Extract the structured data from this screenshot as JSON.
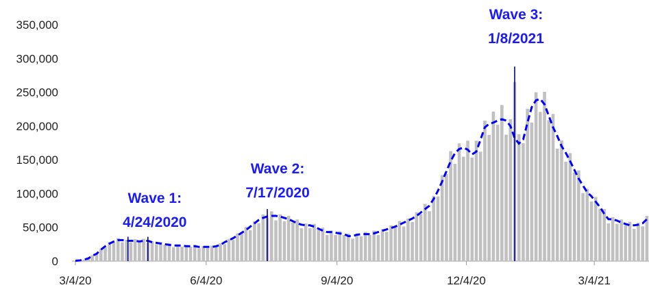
{
  "chart_data": {
    "type": "bar-line",
    "x": [
      0,
      3,
      6,
      9,
      12,
      15,
      18,
      21,
      24,
      27,
      30,
      33,
      36,
      39,
      42,
      45,
      48,
      51,
      54,
      57,
      60,
      63,
      66,
      69,
      72,
      75,
      78,
      81,
      84,
      87,
      90,
      93,
      96,
      99,
      102,
      105,
      108,
      111,
      114,
      117,
      120,
      123,
      126,
      129,
      132,
      135,
      138,
      141,
      144,
      147,
      150,
      153,
      156,
      159,
      162,
      165,
      168,
      171,
      174,
      177,
      180,
      183,
      186,
      189,
      192,
      195,
      198,
      201,
      204,
      207,
      210,
      213,
      216,
      219,
      222,
      225,
      228,
      231,
      234,
      237,
      240,
      243,
      246,
      249,
      252,
      255,
      258,
      261,
      264,
      267,
      270,
      273,
      276,
      279,
      282,
      285,
      288,
      291,
      294,
      297,
      300,
      303,
      306,
      309,
      312,
      315,
      318,
      321,
      324,
      327,
      330,
      333,
      336,
      339,
      342,
      345,
      348,
      351,
      354,
      357,
      360,
      363,
      366,
      369,
      372,
      375,
      378,
      381,
      384,
      387,
      390,
      393,
      396,
      399,
      402
    ],
    "series": [
      {
        "kind": "bar",
        "color": "#c0c0c0",
        "values": [
          500,
          900,
          2200,
          3900,
          8800,
          9900,
          17900,
          20200,
          28100,
          28100,
          34100,
          27900,
          31500,
          27600,
          32400,
          28100,
          33000,
          27000,
          29400,
          24800,
          28100,
          24300,
          26400,
          20700,
          24200,
          21200,
          23800,
          21300,
          24200,
          18900,
          22100,
          19300,
          22700,
          21300,
          26400,
          25200,
          32600,
          31300,
          41000,
          40700,
          50600,
          45900,
          58800,
          56100,
          69100,
          64000,
          73700,
          60300,
          69300,
          58900,
          67000,
          57200,
          61600,
          48600,
          55700,
          48800,
          55100,
          46600,
          49500,
          38700,
          45200,
          38600,
          44300,
          38800,
          40700,
          33300,
          41000,
          36800,
          43200,
          38800,
          45100,
          38700,
          47300,
          43200,
          52900,
          49500,
          59400,
          51300,
          63000,
          58000,
          72400,
          69800,
          84700,
          73800,
          96600,
          95700,
          127400,
          129000,
          162800,
          144000,
          174300,
          154600,
          178200,
          153300,
          178200,
          162000,
          207900,
          186800,
          221400,
          201800,
          231000,
          187200,
          210000,
          265000,
          187900,
          174600,
          225500,
          205200,
          249900,
          220800,
          250600,
          208600,
          217800,
          166500,
          178500,
          147200,
          159800,
          131000,
          134200,
          100800,
          107100,
          88300,
          95000,
          77600,
          77000,
          55800,
          65100,
          55200,
          61600,
          53400,
          58300,
          47700,
          56700,
          51500,
          67000
        ]
      },
      {
        "kind": "line",
        "color": "#0000ff",
        "values": [
          500,
          1000,
          2000,
          4000,
          8000,
          11000,
          17000,
          22000,
          26000,
          29000,
          31000,
          31000,
          30000,
          30000,
          30000,
          29000,
          30000,
          30000,
          28000,
          27000,
          26000,
          25000,
          24000,
          23000,
          23000,
          23000,
          22000,
          22000,
          22000,
          21000,
          21000,
          21000,
          21000,
          22000,
          24000,
          28000,
          31000,
          34000,
          38000,
          42000,
          46000,
          51000,
          56000,
          61000,
          64000,
          66000,
          67000,
          67000,
          66000,
          64000,
          62000,
          59000,
          56000,
          54000,
          53000,
          53000,
          51000,
          48000,
          45000,
          43000,
          43000,
          42000,
          41000,
          40000,
          37000,
          37000,
          39000,
          40000,
          40000,
          40000,
          41000,
          43000,
          45000,
          47000,
          49000,
          51000,
          54000,
          57000,
          60000,
          63000,
          67000,
          72000,
          77000,
          82000,
          92000,
          104000,
          118000,
          133000,
          148000,
          160000,
          166000,
          168000,
          165000,
          158000,
          162000,
          180000,
          198000,
          203000,
          205000,
          208000,
          210000,
          208000,
          200000,
          182000,
          174000,
          180000,
          205000,
          228000,
          238000,
          240000,
          232000,
          215000,
          198000,
          185000,
          170000,
          160000,
          148000,
          135000,
          122000,
          112000,
          102000,
          96000,
          88000,
          80000,
          70000,
          62000,
          62000,
          60000,
          57000,
          55000,
          53000,
          53000,
          54000,
          56000,
          62000
        ]
      }
    ],
    "markers": [
      {
        "x": 37,
        "y": 36000,
        "color": "#00008b"
      },
      {
        "x": 51,
        "y": 36000,
        "color": "#00008b",
        "lines": [
          "Wave 1:",
          "4/24/2020"
        ]
      },
      {
        "x": 135,
        "y": 77000,
        "color": "#00008b",
        "lines": [
          "Wave 2:",
          "7/17/2020"
        ]
      },
      {
        "x": 309,
        "y": 288000,
        "color": "#00008b",
        "lines": [
          "Wave 3:",
          "1/8/2021"
        ]
      }
    ],
    "xlim": [
      0,
      403
    ],
    "xticks": [
      {
        "value": 0,
        "label": "3/4/20"
      },
      {
        "value": 92,
        "label": "6/4/20"
      },
      {
        "value": 184,
        "label": "9/4/20"
      },
      {
        "value": 275,
        "label": "12/4/20"
      },
      {
        "value": 365,
        "label": "3/4/21"
      }
    ],
    "ylim": [
      0,
      350000
    ],
    "yticks": [
      0,
      {
        "value": 50000,
        "label": "50,000"
      },
      {
        "value": 100000,
        "label": "100,000"
      },
      {
        "value": 150000,
        "label": "150,000"
      },
      {
        "value": 200000,
        "label": "200,000"
      },
      {
        "value": 250000,
        "label": "250,000"
      },
      {
        "value": 300000,
        "label": "300,000"
      },
      {
        "value": 350000,
        "label": "350,000"
      }
    ],
    "grid": false
  }
}
